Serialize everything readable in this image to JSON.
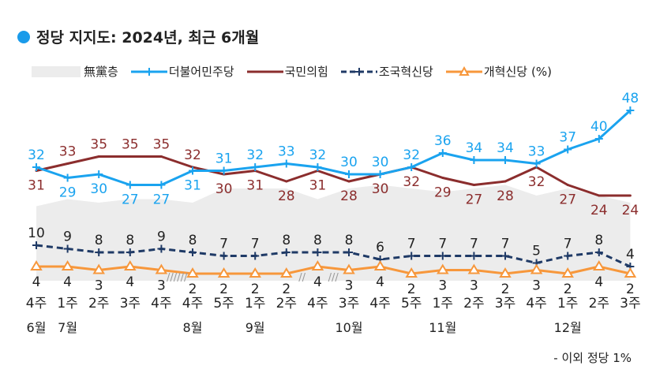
{
  "title": "정당 지지도: 2024년, 최근 6개월",
  "footnote": "- 이외 정당 1%",
  "colors": {
    "title_dot": "#1a9bea",
    "none": "#ececec",
    "dem": "#1aa3ef",
    "ppp": "#8b2d2d",
    "rebuild": "#1f3a66",
    "reform": "#f7973b"
  },
  "chart_data": {
    "type": "line",
    "title": "정당 지지도: 2024년, 최근 6개월",
    "unit": "(%)",
    "legend_position": "top",
    "grid": false,
    "ylim": [
      0,
      50
    ],
    "categories": [
      "4주",
      "1주",
      "2주",
      "3주",
      "4주",
      "4주",
      "5주",
      "1주",
      "2주",
      "4주",
      "3주",
      "4주",
      "5주",
      "1주",
      "2주",
      "3주",
      "4주",
      "1주",
      "2주",
      "3주"
    ],
    "months": [
      {
        "index": 0,
        "label": "6월"
      },
      {
        "index": 1,
        "label": "7월"
      },
      {
        "index": 5,
        "label": "8월"
      },
      {
        "index": 7,
        "label": "9월"
      },
      {
        "index": 10,
        "label": "10월"
      },
      {
        "index": 13,
        "label": "11월"
      },
      {
        "index": 17,
        "label": "12월"
      }
    ],
    "gaps": [
      {
        "after": 4,
        "mark": "//////"
      },
      {
        "after": 8,
        "mark": "//"
      },
      {
        "after": 9,
        "mark": "///"
      }
    ],
    "series": [
      {
        "name": "無黨층",
        "style": "area",
        "labeled": false,
        "values": [
          21,
          23,
          22,
          23,
          23,
          22,
          26,
          26,
          26,
          23,
          26,
          27,
          26,
          25,
          26,
          27,
          24,
          26,
          24,
          22
        ]
      },
      {
        "name": "더불어민주당",
        "style": "line-plus",
        "values": [
          32,
          29,
          30,
          27,
          27,
          31,
          31,
          32,
          33,
          32,
          30,
          30,
          32,
          36,
          34,
          34,
          33,
          37,
          40,
          48
        ]
      },
      {
        "name": "국민의힘",
        "style": "line",
        "values": [
          31,
          33,
          35,
          35,
          35,
          32,
          30,
          31,
          28,
          31,
          28,
          30,
          32,
          29,
          27,
          28,
          32,
          27,
          24,
          24
        ]
      },
      {
        "name": "조국혁신당",
        "style": "dashed-plus",
        "values": [
          10,
          9,
          8,
          8,
          9,
          8,
          7,
          7,
          8,
          8,
          8,
          6,
          7,
          7,
          7,
          7,
          5,
          7,
          8,
          4
        ]
      },
      {
        "name": "개혁신당",
        "style": "line-triangle",
        "values": [
          4,
          4,
          3,
          4,
          3,
          2,
          2,
          2,
          2,
          4,
          3,
          4,
          2,
          3,
          3,
          2,
          3,
          2,
          4,
          2
        ]
      }
    ]
  }
}
